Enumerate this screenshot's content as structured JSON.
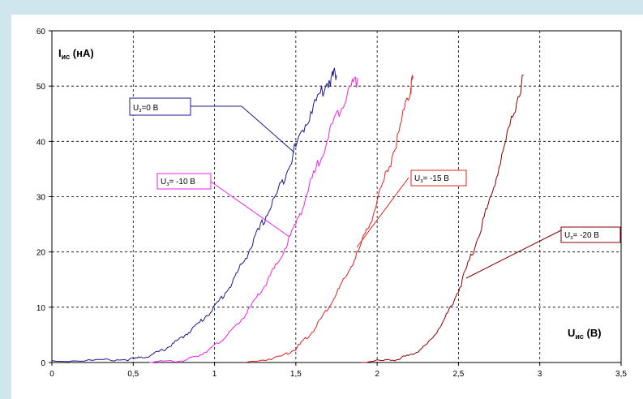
{
  "chart_data": {
    "type": "line",
    "title": "",
    "xlabel": {
      "main": "U",
      "sub": "ис",
      "unit": " (В)"
    },
    "ylabel": {
      "main": "I",
      "sub": "ис",
      "unit": " (нА)"
    },
    "xlim": [
      0,
      3.5
    ],
    "ylim": [
      0,
      60
    ],
    "x_ticks": [
      "0",
      "0,5",
      "1",
      "1,5",
      "2",
      "2,5",
      "3",
      "3,5"
    ],
    "y_ticks": [
      "0",
      "10",
      "20",
      "30",
      "40",
      "50",
      "60"
    ],
    "grid": true,
    "series": [
      {
        "name": "Uз=0 В",
        "label": {
          "main": "U",
          "sub": "з",
          "rest": "=0 В"
        },
        "color": "#1a1a8c",
        "x": [
          0,
          0.3,
          0.5,
          0.6,
          0.7,
          0.8,
          0.9,
          1.0,
          1.1,
          1.2,
          1.3,
          1.4,
          1.5,
          1.6,
          1.7,
          1.75
        ],
        "y": [
          0.3,
          0.4,
          0.6,
          1.2,
          2.5,
          4.5,
          7,
          10,
          14,
          19.5,
          25.5,
          31.5,
          39,
          46,
          51,
          52
        ]
      },
      {
        "name": "Uз= -10 В",
        "label": {
          "main": "U",
          "sub": "з",
          "rest": "= -10 В"
        },
        "color": "#ee22ee",
        "x": [
          0.6,
          0.8,
          0.9,
          1.0,
          1.1,
          1.2,
          1.3,
          1.4,
          1.5,
          1.6,
          1.7,
          1.8,
          1.88
        ],
        "y": [
          0,
          0.3,
          1.2,
          3,
          5.5,
          9,
          13.5,
          18.5,
          25,
          33,
          41,
          48,
          51.5
        ]
      },
      {
        "name": "Uз= -15 В",
        "label": {
          "main": "U",
          "sub": "з",
          "rest": "= -15 В"
        },
        "color": "#e02020",
        "x": [
          1.2,
          1.4,
          1.5,
          1.6,
          1.7,
          1.8,
          1.9,
          2.0,
          2.1,
          2.2,
          2.22
        ],
        "y": [
          0,
          1,
          2.5,
          5.5,
          10,
          15,
          21,
          29,
          38,
          49,
          51.5
        ]
      },
      {
        "name": "Uз= -20 В",
        "label": {
          "main": "U",
          "sub": "з",
          "rest": "= -20 В"
        },
        "color": "#880000",
        "x": [
          1.9,
          2.1,
          2.2,
          2.3,
          2.4,
          2.5,
          2.6,
          2.7,
          2.8,
          2.9
        ],
        "y": [
          0,
          0.5,
          1.2,
          3,
          7,
          13,
          21,
          30,
          41,
          52
        ]
      }
    ]
  }
}
